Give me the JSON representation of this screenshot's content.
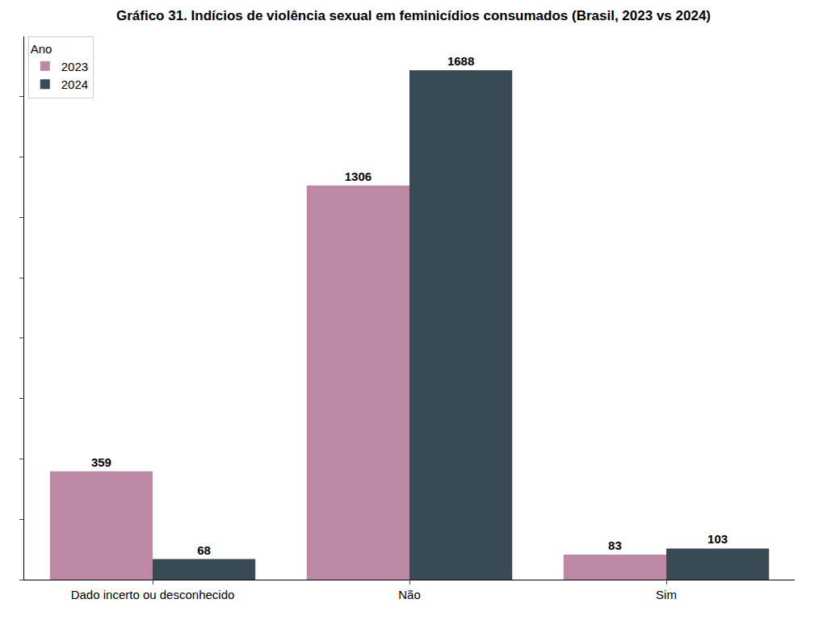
{
  "chart_data": {
    "type": "bar",
    "title": "Gráfico 31. Indícios de violência sexual em feminicídios consumados (Brasil, 2023 vs 2024)",
    "legend_title": "Ano",
    "categories": [
      "Dado incerto ou desconhecido",
      "Não",
      "Sim"
    ],
    "series": [
      {
        "name": "2023",
        "color": "#bc88a4",
        "values": [
          359,
          1306,
          83
        ]
      },
      {
        "name": "2024",
        "color": "#3a4a55",
        "values": [
          68,
          1688,
          103
        ]
      }
    ],
    "ylim": [
      0,
      1800
    ],
    "yticks": [
      0,
      200,
      400,
      600,
      800,
      1000,
      1200,
      1400,
      1600
    ],
    "grid": false,
    "legend": "upper left",
    "data_labels": true,
    "tick_labels": "x"
  }
}
